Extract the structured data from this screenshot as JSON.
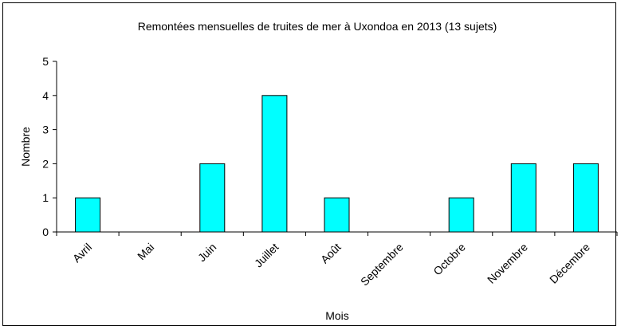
{
  "chart_data": {
    "type": "bar",
    "title": "Remontées mensuelles de truites de mer à Uxondoa en 2013 (13 sujets)",
    "xlabel": "Mois",
    "ylabel": "Nombre",
    "categories": [
      "Avril",
      "Mai",
      "Juin",
      "Juillet",
      "Août",
      "Septembre",
      "Octobre",
      "Novembre",
      "Décembre"
    ],
    "values": [
      1,
      0,
      2,
      4,
      1,
      0,
      1,
      2,
      2
    ],
    "ylim": [
      0,
      5
    ],
    "yticks": [
      0,
      1,
      2,
      3,
      4,
      5
    ],
    "grid": false,
    "legend": "none",
    "bar_color": "#00FFFF"
  }
}
